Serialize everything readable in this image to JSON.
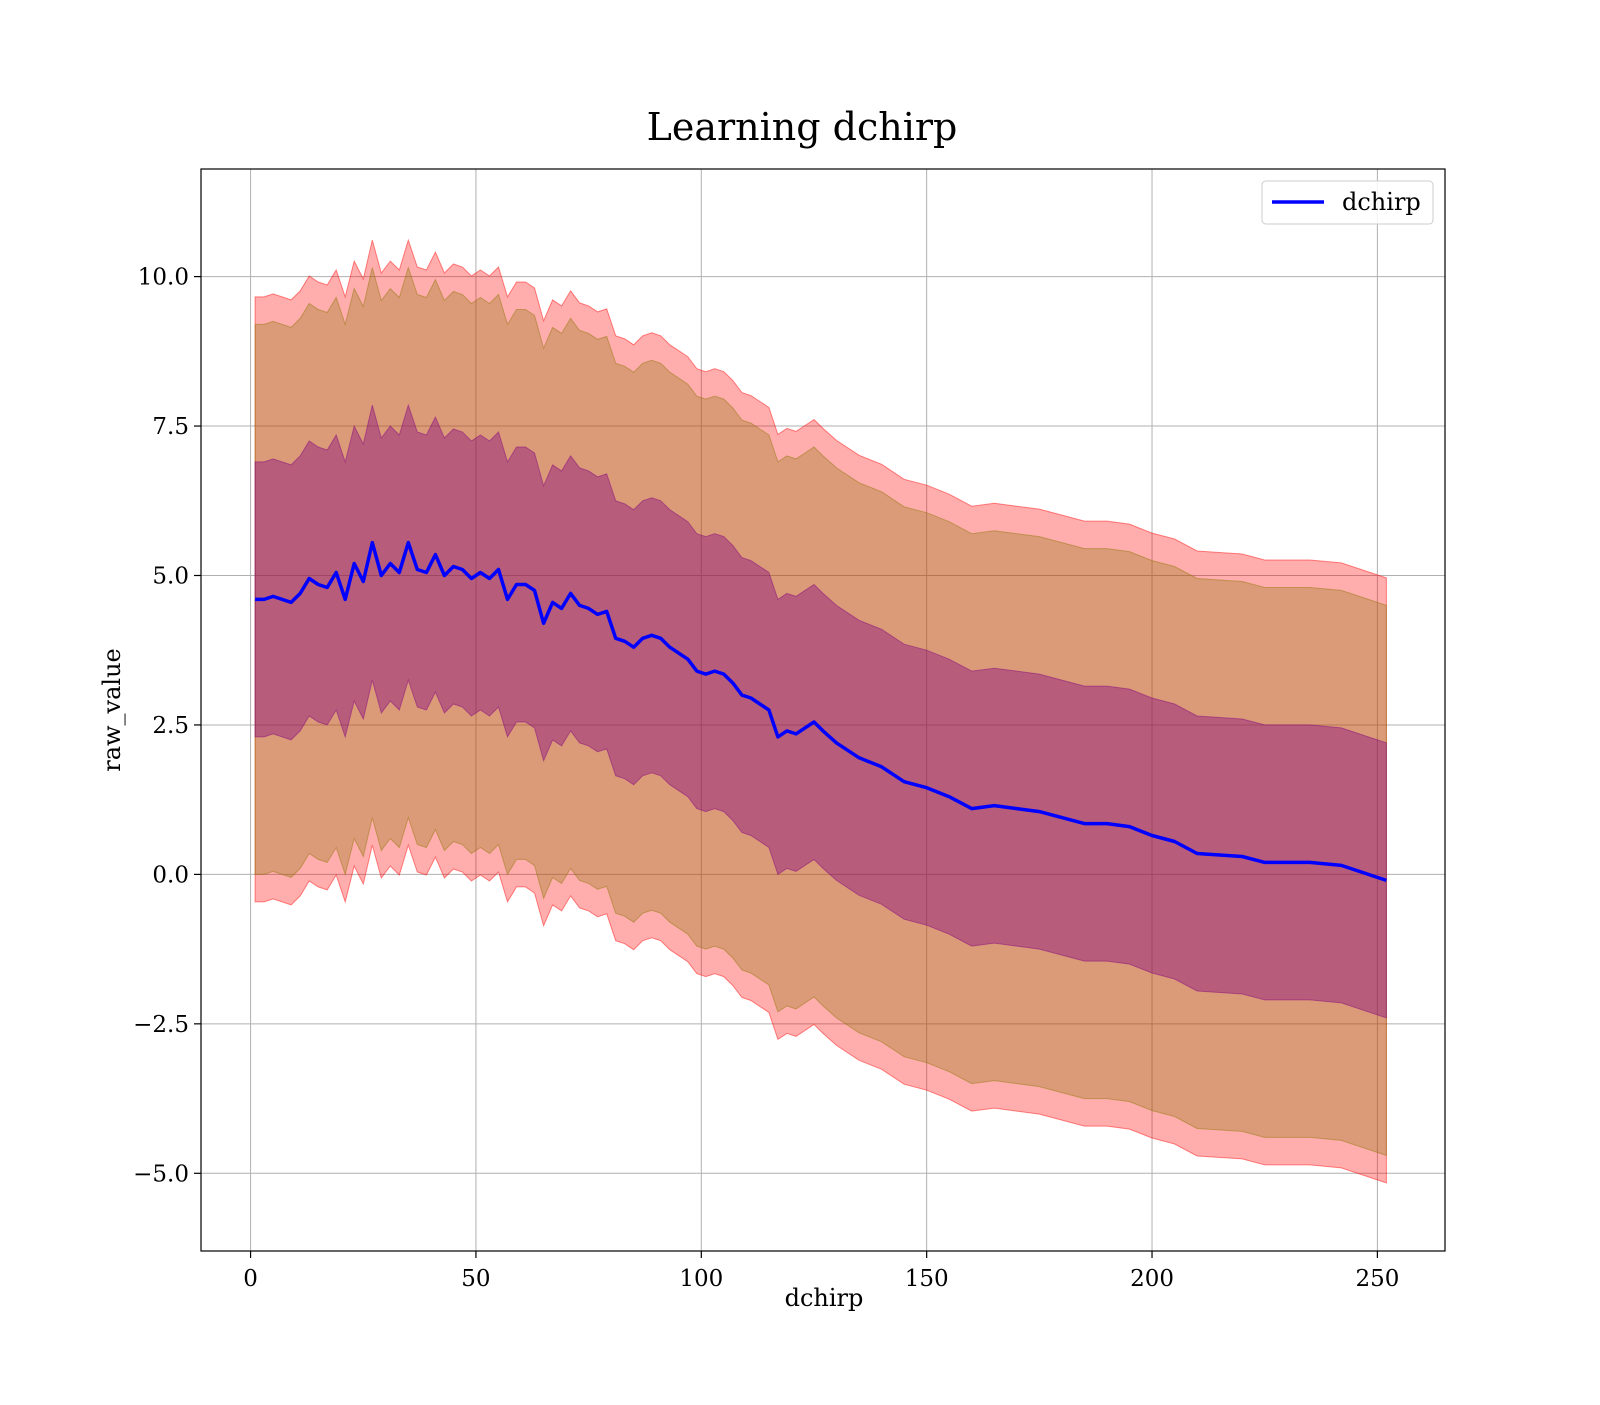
{
  "chart_data": {
    "type": "line",
    "title": "Learning dchirp",
    "xlabel": "dchirp",
    "ylabel": "raw_value",
    "xlim": [
      -11,
      265
    ],
    "ylim": [
      -6.3,
      11.8
    ],
    "xticks": [
      0,
      50,
      100,
      150,
      200,
      250
    ],
    "xtick_labels": [
      "0",
      "50",
      "100",
      "150",
      "200",
      "250"
    ],
    "yticks": [
      -5.0,
      -2.5,
      0.0,
      2.5,
      5.0,
      7.5,
      10.0
    ],
    "ytick_labels": [
      "−5.0",
      "−2.5",
      "0.0",
      "2.5",
      "5.0",
      "7.5",
      "10.0"
    ],
    "grid": true,
    "legend": {
      "position": "top-right",
      "entries": [
        "dchirp"
      ]
    },
    "colors": {
      "line": "#0000ff",
      "band_outer": "#ff0000",
      "band_middle": "#8b7500",
      "band_inner": "#800080"
    },
    "band_widths_in_std": [
      1,
      2,
      2.2
    ],
    "series": [
      {
        "name": "dchirp",
        "x": [
          1,
          3,
          5,
          7,
          9,
          11,
          13,
          15,
          17,
          19,
          21,
          23,
          25,
          27,
          29,
          31,
          33,
          35,
          37,
          39,
          41,
          43,
          45,
          47,
          49,
          51,
          53,
          55,
          57,
          59,
          61,
          63,
          65,
          67,
          69,
          71,
          73,
          75,
          77,
          79,
          81,
          83,
          85,
          87,
          89,
          91,
          93,
          95,
          97,
          99,
          101,
          103,
          105,
          107,
          109,
          111,
          113,
          115,
          117,
          119,
          121,
          123,
          125,
          127,
          130,
          135,
          140,
          145,
          150,
          155,
          160,
          165,
          170,
          175,
          180,
          185,
          190,
          195,
          200,
          205,
          210,
          220,
          225,
          235,
          242,
          252
        ],
        "mean": [
          4.6,
          4.6,
          4.65,
          4.6,
          4.55,
          4.7,
          4.95,
          4.85,
          4.8,
          5.05,
          4.6,
          5.2,
          4.9,
          5.55,
          5.0,
          5.2,
          5.05,
          5.55,
          5.1,
          5.05,
          5.35,
          5.0,
          5.15,
          5.1,
          4.95,
          5.05,
          4.95,
          5.1,
          4.6,
          4.85,
          4.85,
          4.75,
          4.2,
          4.55,
          4.45,
          4.7,
          4.5,
          4.45,
          4.35,
          4.4,
          3.95,
          3.9,
          3.8,
          3.95,
          4.0,
          3.95,
          3.8,
          3.7,
          3.6,
          3.4,
          3.35,
          3.4,
          3.35,
          3.2,
          3.0,
          2.95,
          2.85,
          2.75,
          2.3,
          2.4,
          2.35,
          2.45,
          2.55,
          2.4,
          2.2,
          1.95,
          1.8,
          1.55,
          1.45,
          1.3,
          1.1,
          1.15,
          1.1,
          1.05,
          0.95,
          0.85,
          0.85,
          0.8,
          0.65,
          0.55,
          0.35,
          0.3,
          0.2,
          0.2,
          0.15,
          -0.1
        ],
        "std": [
          2.3,
          2.3,
          2.3,
          2.3,
          2.3,
          2.3,
          2.3,
          2.3,
          2.3,
          2.3,
          2.3,
          2.3,
          2.3,
          2.3,
          2.3,
          2.3,
          2.3,
          2.3,
          2.3,
          2.3,
          2.3,
          2.3,
          2.3,
          2.3,
          2.3,
          2.3,
          2.3,
          2.3,
          2.3,
          2.3,
          2.3,
          2.3,
          2.3,
          2.3,
          2.3,
          2.3,
          2.3,
          2.3,
          2.3,
          2.3,
          2.3,
          2.3,
          2.3,
          2.3,
          2.3,
          2.3,
          2.3,
          2.3,
          2.3,
          2.3,
          2.3,
          2.3,
          2.3,
          2.3,
          2.3,
          2.3,
          2.3,
          2.3,
          2.3,
          2.3,
          2.3,
          2.3,
          2.3,
          2.3,
          2.3,
          2.3,
          2.3,
          2.3,
          2.3,
          2.3,
          2.3,
          2.3,
          2.3,
          2.3,
          2.3,
          2.3,
          2.3,
          2.3,
          2.3,
          2.3,
          2.3,
          2.3,
          2.3,
          2.3,
          2.3,
          2.3
        ]
      }
    ]
  }
}
